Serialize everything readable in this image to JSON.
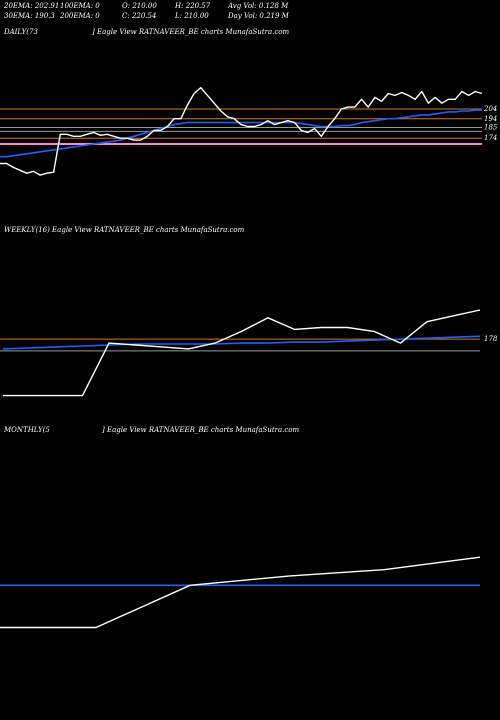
{
  "header": {
    "row1": [
      "20EMA: 202.91",
      "100EMA: 0",
      "O: 210.00",
      "H: 220.57",
      "Avg Vol: 0.128 M"
    ],
    "row2": [
      "30EMA: 190.3",
      "200EMA: 0",
      "C: 220.54",
      "L: 210.00",
      "Day Vol: 0.219 M"
    ]
  },
  "panels": {
    "daily": {
      "label": "DAILY(73",
      "caption": "] Eagle  View  RATNAVEER_BE charts MunafaSutra.com"
    },
    "weekly": {
      "label": "WEEKLY(16) Eagle  View  RATNAVEER_BE charts MunafaSutra.com"
    },
    "monthly": {
      "label": "MONTHLY(5",
      "caption": "] Eagle  View  RATNAVEER_BE charts MunafaSutra.com"
    }
  },
  "colors": {
    "price": "#ffffff",
    "ema": "#1f5fff",
    "orange": "#d07a20",
    "pink": "#ff88cc",
    "grey": "#9a9a9a"
  },
  "chart_data": [
    {
      "type": "line",
      "name": "daily",
      "ylim": [
        95,
        275
      ],
      "level_labels": [
        204,
        194,
        185,
        174
      ],
      "series": [
        {
          "name": "price",
          "color": "#ffffff",
          "values": [
            148,
            148,
            144,
            141,
            138,
            140,
            136,
            138,
            139,
            178,
            178,
            176,
            176,
            178,
            180,
            177,
            178,
            176,
            174,
            174,
            172,
            172,
            176,
            182,
            182,
            186,
            194,
            194,
            208,
            220,
            226,
            218,
            210,
            202,
            196,
            194,
            188,
            186,
            186,
            188,
            192,
            188,
            190,
            192,
            190,
            182,
            180,
            184,
            176,
            186,
            194,
            204,
            206,
            206,
            214,
            206,
            216,
            212,
            220,
            218,
            221,
            218,
            214,
            222,
            210,
            216,
            210,
            214,
            214,
            222,
            218,
            222,
            220
          ]
        },
        {
          "name": "ema",
          "color": "#1f5fff",
          "values": [
            155,
            155,
            156,
            157,
            158,
            159,
            160,
            161,
            162,
            163,
            164,
            165,
            166,
            167,
            168,
            169,
            170,
            171,
            172,
            174,
            176,
            178,
            180,
            182,
            184,
            186,
            188,
            189,
            190,
            190,
            190,
            190,
            190,
            190,
            190,
            190,
            190,
            190,
            190,
            190,
            190,
            190,
            190,
            190,
            190,
            189,
            188,
            187,
            186,
            186,
            186,
            187,
            187,
            188,
            190,
            191,
            192,
            193,
            194,
            194,
            195,
            196,
            197,
            198,
            198,
            199,
            200,
            201,
            201,
            202,
            202,
            203,
            203
          ]
        }
      ],
      "levels": [
        {
          "value": 204,
          "color": "#d07a20"
        },
        {
          "value": 194,
          "color": "#d07a20"
        },
        {
          "value": 185,
          "color": "#9a9a9a"
        },
        {
          "value": 181,
          "color": "#9a9a9a"
        },
        {
          "value": 174,
          "color": "#d07a20"
        },
        {
          "value": 168,
          "color": "#ff88cc"
        }
      ]
    },
    {
      "type": "line",
      "name": "weekly",
      "ylim": [
        100,
        280
      ],
      "level_labels": [
        178
      ],
      "series": [
        {
          "name": "price",
          "color": "#ffffff",
          "values": [
            120,
            120,
            120,
            120,
            174,
            172,
            170,
            168,
            174,
            186,
            200,
            188,
            190,
            190,
            186,
            174,
            196,
            202,
            208
          ]
        },
        {
          "name": "ema",
          "color": "#1f5fff",
          "values": [
            168,
            169,
            170,
            171,
            172,
            173,
            173,
            173,
            173,
            174,
            174,
            175,
            175,
            176,
            177,
            178,
            179,
            180,
            181
          ]
        }
      ],
      "levels": [
        {
          "value": 178,
          "color": "#d07a20"
        },
        {
          "value": 166,
          "color": "#9a9a9a"
        }
      ]
    },
    {
      "type": "line",
      "name": "monthly",
      "ylim": [
        40,
        360
      ],
      "series": [
        {
          "name": "price",
          "color": "#ffffff",
          "values": [
            120,
            120,
            174,
            186,
            194,
            210
          ]
        },
        {
          "name": "ema",
          "color": "#1f5fff",
          "values": [
            174,
            174,
            174,
            174,
            174,
            174
          ]
        }
      ],
      "levels": []
    }
  ]
}
